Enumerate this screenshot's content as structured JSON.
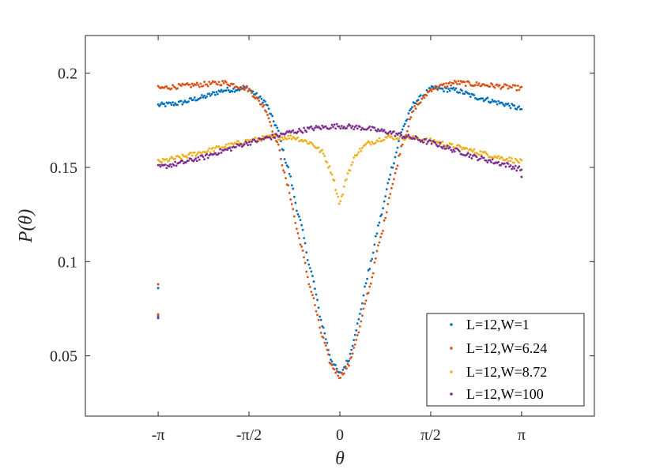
{
  "chart_data": {
    "type": "scatter",
    "title": "",
    "xlabel": "θ",
    "ylabel": {
      "prefix": "P(",
      "var": "θ",
      "suffix": ")"
    },
    "xlim": [
      -4.4,
      4.4
    ],
    "ylim": [
      0.018,
      0.22
    ],
    "x_ticks": [
      {
        "value": -3.14159,
        "label": "-π"
      },
      {
        "value": -1.5708,
        "label": "-π/2"
      },
      {
        "value": 0,
        "label": "0"
      },
      {
        "value": 1.5708,
        "label": "π/2"
      },
      {
        "value": 3.14159,
        "label": "π"
      }
    ],
    "y_ticks": [
      {
        "value": 0.05,
        "label": "0.05"
      },
      {
        "value": 0.1,
        "label": "0.1"
      },
      {
        "value": 0.15,
        "label": "0.15"
      },
      {
        "value": 0.2,
        "label": "0.2"
      }
    ],
    "grid": false,
    "legend_position": "bottom-right",
    "series": [
      {
        "name": "L=12,W=1",
        "color": "#0072BD",
        "x": [
          -3.14159,
          -2.8,
          -2.4,
          -2.0,
          -1.6,
          -1.3,
          -1.1,
          -0.9,
          -0.7,
          -0.5,
          -0.3,
          -0.15,
          0,
          0.15,
          0.3,
          0.5,
          0.7,
          0.9,
          1.1,
          1.3,
          1.6,
          2.0,
          2.4,
          2.8,
          3.14159
        ],
        "y": [
          0.183,
          0.184,
          0.187,
          0.191,
          0.192,
          0.185,
          0.172,
          0.15,
          0.123,
          0.095,
          0.066,
          0.048,
          0.04,
          0.048,
          0.066,
          0.095,
          0.123,
          0.15,
          0.172,
          0.185,
          0.192,
          0.191,
          0.187,
          0.184,
          0.181
        ],
        "outliers": [
          {
            "x": -3.14159,
            "y": 0.086
          },
          {
            "x": -3.14159,
            "y": 0.071
          }
        ]
      },
      {
        "name": "L=12,W=6.24",
        "color": "#D95319",
        "x": [
          -3.14159,
          -2.8,
          -2.4,
          -2.0,
          -1.6,
          -1.3,
          -1.1,
          -0.9,
          -0.7,
          -0.5,
          -0.3,
          -0.15,
          0,
          0.15,
          0.3,
          0.5,
          0.7,
          0.9,
          1.1,
          1.3,
          1.6,
          2.0,
          2.4,
          2.8,
          3.14159
        ],
        "y": [
          0.192,
          0.193,
          0.194,
          0.195,
          0.192,
          0.182,
          0.165,
          0.14,
          0.112,
          0.085,
          0.06,
          0.045,
          0.039,
          0.045,
          0.06,
          0.085,
          0.112,
          0.14,
          0.165,
          0.182,
          0.192,
          0.195,
          0.194,
          0.193,
          0.192
        ],
        "outliers": [
          {
            "x": -3.14159,
            "y": 0.088
          },
          {
            "x": -3.14159,
            "y": 0.072
          }
        ]
      },
      {
        "name": "L=12,W=8.72",
        "color": "#EDB120",
        "x": [
          -3.14159,
          -2.8,
          -2.4,
          -2.0,
          -1.6,
          -1.2,
          -0.8,
          -0.5,
          -0.3,
          -0.15,
          0,
          0.15,
          0.3,
          0.5,
          0.8,
          1.2,
          1.6,
          2.0,
          2.4,
          2.8,
          3.14159
        ],
        "y": [
          0.153,
          0.155,
          0.158,
          0.161,
          0.164,
          0.166,
          0.166,
          0.163,
          0.158,
          0.148,
          0.131,
          0.148,
          0.158,
          0.163,
          0.166,
          0.166,
          0.164,
          0.161,
          0.158,
          0.155,
          0.153
        ],
        "outliers": []
      },
      {
        "name": "L=12,W=100",
        "color": "#7E2F8E",
        "x": [
          -3.14159,
          -2.8,
          -2.4,
          -2.0,
          -1.6,
          -1.2,
          -0.8,
          -0.4,
          0,
          0.4,
          0.8,
          1.2,
          1.6,
          2.0,
          2.4,
          2.8,
          3.14159
        ],
        "y": [
          0.15,
          0.152,
          0.155,
          0.159,
          0.163,
          0.166,
          0.169,
          0.171,
          0.172,
          0.171,
          0.169,
          0.166,
          0.163,
          0.159,
          0.155,
          0.152,
          0.149
        ],
        "outliers": [
          {
            "x": -3.14159,
            "y": 0.07
          },
          {
            "x": 3.14159,
            "y": 0.145
          }
        ]
      }
    ]
  }
}
